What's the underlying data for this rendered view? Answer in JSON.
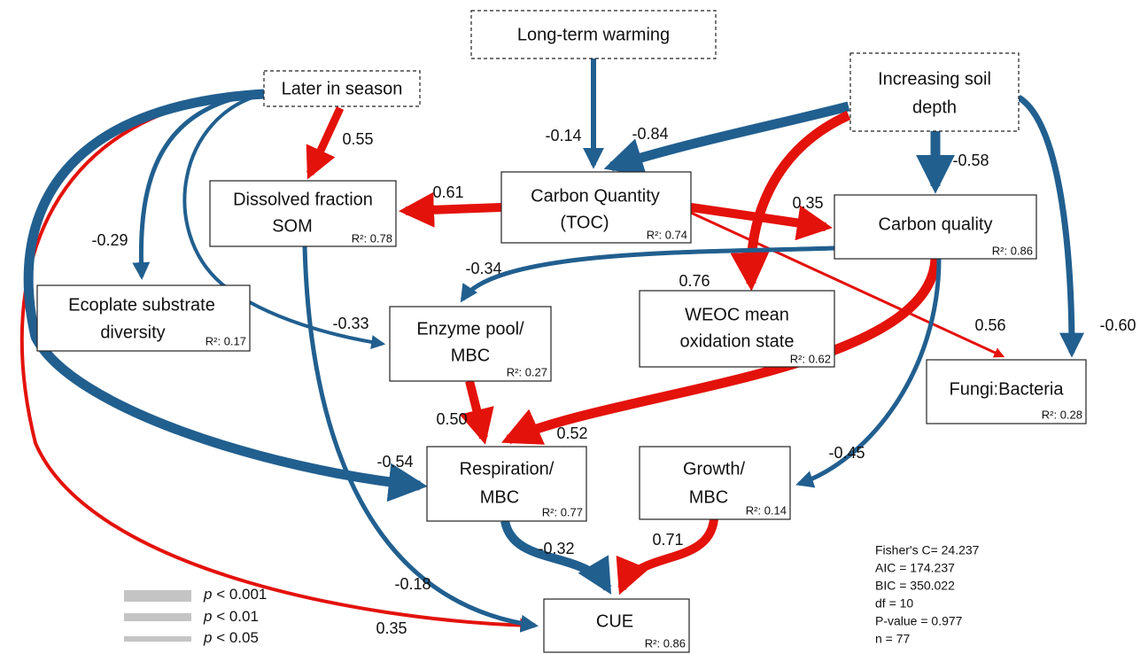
{
  "nodes": [
    {
      "lines": [
        "Long-term warming"
      ]
    },
    {
      "lines": [
        "Later in season"
      ]
    },
    {
      "lines": [
        "Increasing soil",
        "depth"
      ]
    },
    {
      "lines": [
        "Dissolved fraction",
        "SOM"
      ],
      "r2": "R²: 0.78"
    },
    {
      "lines": [
        "Carbon Quantity",
        "(TOC)"
      ],
      "r2": "R²: 0.74"
    },
    {
      "lines": [
        "Carbon quality"
      ],
      "r2": "R²: 0.86"
    },
    {
      "lines": [
        "Ecoplate substrate",
        "diversity"
      ],
      "r2": "R²: 0.17"
    },
    {
      "lines": [
        "Enzyme pool/",
        "MBC"
      ],
      "r2": "R²: 0.27"
    },
    {
      "lines": [
        "WEOC mean",
        "oxidation state"
      ],
      "r2": "R²: 0.62"
    },
    {
      "lines": [
        "Fungi:Bacteria"
      ],
      "r2": "R²: 0.28"
    },
    {
      "lines": [
        "Respiration/",
        "MBC"
      ],
      "r2": "R²: 0.77"
    },
    {
      "lines": [
        "Growth/",
        "MBC"
      ],
      "r2": "R²: 0.14"
    },
    {
      "lines": [
        "CUE"
      ],
      "r2": "R²: 0.86"
    }
  ],
  "edges": [
    {
      "label": "-0.14",
      "color": "#215f8f"
    },
    {
      "label": "-0.84",
      "color": "#215f8f"
    },
    {
      "label": "0.55",
      "color": "#e3120b"
    },
    {
      "label": "0.61",
      "color": "#e3120b"
    },
    {
      "label": "0.35",
      "color": "#e3120b"
    },
    {
      "label": "-0.58",
      "color": "#215f8f"
    },
    {
      "label": "-0.60",
      "color": "#215f8f"
    },
    {
      "label": "0.76",
      "color": "#e3120b"
    },
    {
      "label": "0.56",
      "color": "#e3120b"
    },
    {
      "label": "-0.34",
      "color": "#215f8f"
    },
    {
      "label": "-0.29",
      "color": "#215f8f"
    },
    {
      "label": "-0.33",
      "color": "#215f8f"
    },
    {
      "label": "-0.54",
      "color": "#215f8f"
    },
    {
      "label": "0.35",
      "color": "#e3120b"
    },
    {
      "label": "0.50",
      "color": "#e3120b"
    },
    {
      "label": "0.52",
      "color": "#e3120b"
    },
    {
      "label": "-0.45",
      "color": "#215f8f"
    },
    {
      "label": "-0.18",
      "color": "#215f8f"
    },
    {
      "label": "-0.32",
      "color": "#215f8f"
    },
    {
      "label": "0.71",
      "color": "#e3120b"
    }
  ],
  "legend": [
    {
      "symbol": "p",
      "text": " < 0.001"
    },
    {
      "symbol": "p",
      "text": " < 0.01"
    },
    {
      "symbol": "p",
      "text": " < 0.05"
    }
  ],
  "stats": [
    "Fisher's C= 24.237",
    "AIC = 174.237",
    "BIC = 350.022",
    "df = 10",
    "P-value = 0.977",
    "n = 77"
  ]
}
